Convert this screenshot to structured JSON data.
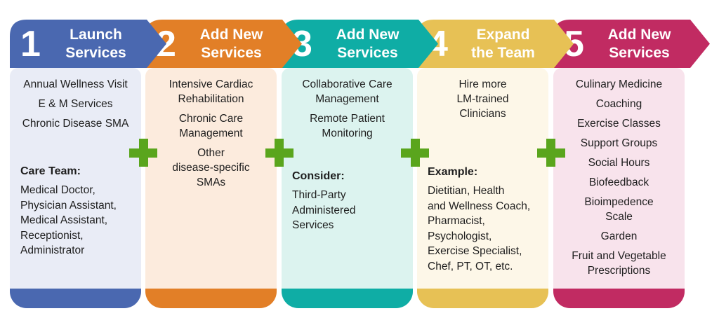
{
  "page": {
    "background": "#ffffff",
    "text_color": "#1e1e1e"
  },
  "plus_icon": {
    "color": "#5aa51d"
  },
  "columns": [
    {
      "number": "1",
      "title": "Launch\nServices",
      "accent": "#4a68b0",
      "panel": "#e9ecf6",
      "sections": [
        {
          "align": "center",
          "items": [
            "Annual Wellness Visit",
            "E & M Services",
            "Chronic Disease SMA"
          ]
        },
        {
          "align": "left",
          "heading": "Care Team:",
          "lines": [
            "Medical Doctor,",
            "Physician Assistant,",
            "Medical Assistant,",
            "Receptionist,",
            "Administrator"
          ]
        }
      ]
    },
    {
      "number": "2",
      "title": "Add New\nServices",
      "accent": "#e27f27",
      "panel": "#fcebdd",
      "sections": [
        {
          "align": "center",
          "items": [
            "Intensive Cardiac\nRehabilitation",
            "Chronic Care\nManagement",
            "Other\ndisease-specific\nSMAs"
          ]
        }
      ]
    },
    {
      "number": "3",
      "title": "Add New\nServices",
      "accent": "#0fada5",
      "panel": "#dcf3ef",
      "sections": [
        {
          "align": "center",
          "items": [
            "Collaborative Care\nManagement",
            "Remote Patient\nMonitoring"
          ]
        },
        {
          "align": "left",
          "heading": "Consider:",
          "lines": [
            "Third-Party",
            "Administered",
            "Services"
          ]
        }
      ]
    },
    {
      "number": "4",
      "title": "Expand\nthe Team",
      "accent": "#e7c155",
      "panel": "#fdf7e8",
      "sections": [
        {
          "align": "center",
          "items": [
            "Hire more\nLM-trained\nClinicians"
          ]
        },
        {
          "align": "left",
          "heading": "Example:",
          "lines": [
            "Dietitian, Health",
            "and Wellness Coach,",
            "Pharmacist,",
            "Psychologist,",
            "Exercise Specialist,",
            "Chef, PT, OT, etc."
          ]
        }
      ]
    },
    {
      "number": "5",
      "title": "Add New\nServices",
      "accent": "#c12b62",
      "panel": "#f8e3ec",
      "sections": [
        {
          "align": "center",
          "items": [
            "Culinary Medicine",
            "Coaching",
            "Exercise Classes",
            "Support Groups",
            "Social Hours",
            "Biofeedback",
            "Bioimpedence\nScale",
            "Garden",
            "Fruit and Vegetable\nPrescriptions"
          ]
        }
      ]
    }
  ]
}
